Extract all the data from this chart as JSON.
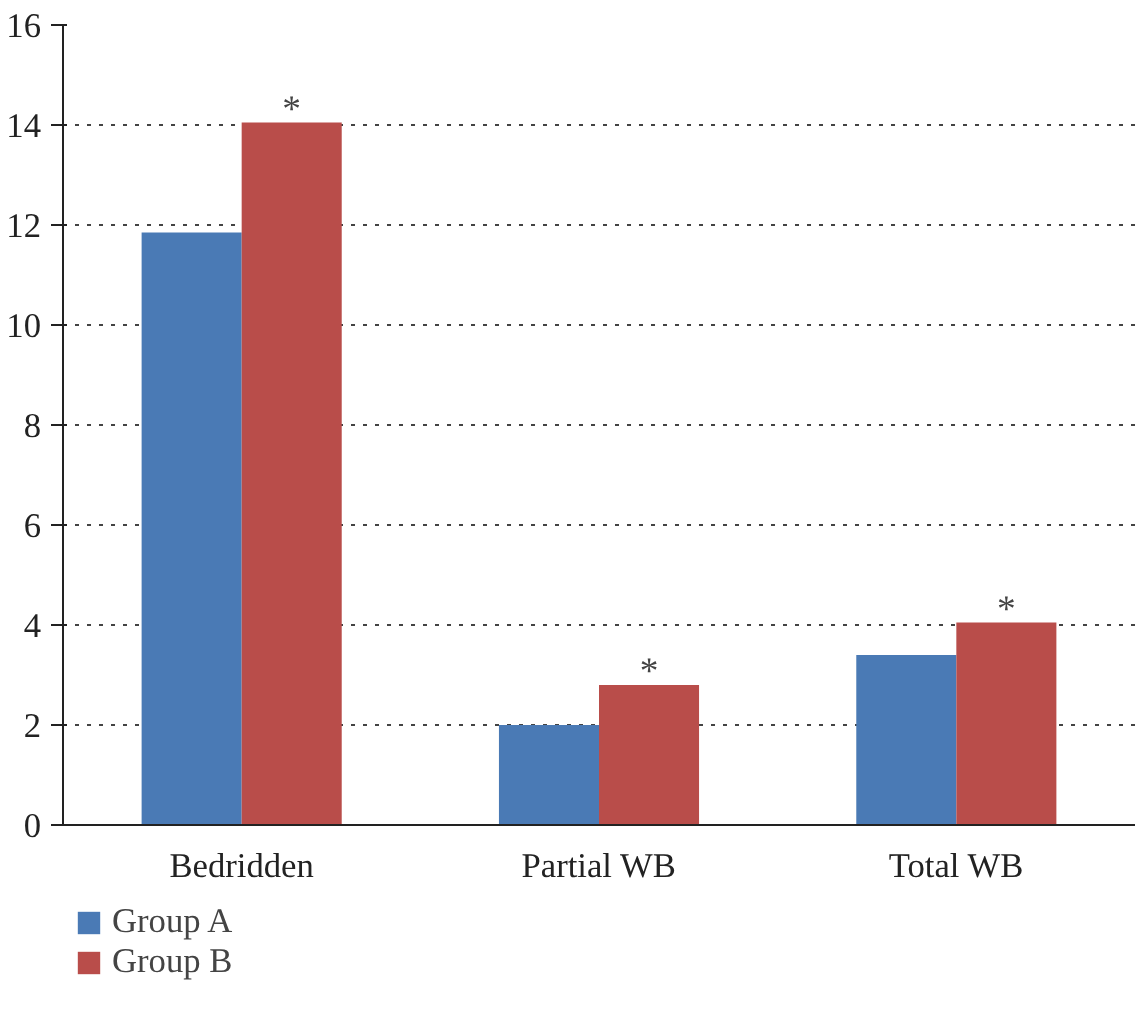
{
  "chart_data": {
    "type": "bar",
    "categories": [
      "Bedridden",
      "Partial WB",
      "Total WB"
    ],
    "series": [
      {
        "name": "Group A",
        "color": "#4a7ab5",
        "values": [
          11.85,
          2.0,
          3.4
        ]
      },
      {
        "name": "Group B",
        "color": "#b94d4a",
        "values": [
          14.05,
          2.8,
          4.05
        ]
      }
    ],
    "ylim": [
      0,
      16
    ],
    "yticks": [
      0,
      2,
      4,
      6,
      8,
      10,
      12,
      14,
      16
    ],
    "grid": "y",
    "legend": "bottom left",
    "annotations": [
      {
        "text": "*",
        "x": "Bedridden",
        "y": 14.05
      },
      {
        "text": "*",
        "x": "Partial WB",
        "y": 2.8
      },
      {
        "text": "*",
        "x": "Total WB",
        "y": 4.05
      }
    ]
  }
}
